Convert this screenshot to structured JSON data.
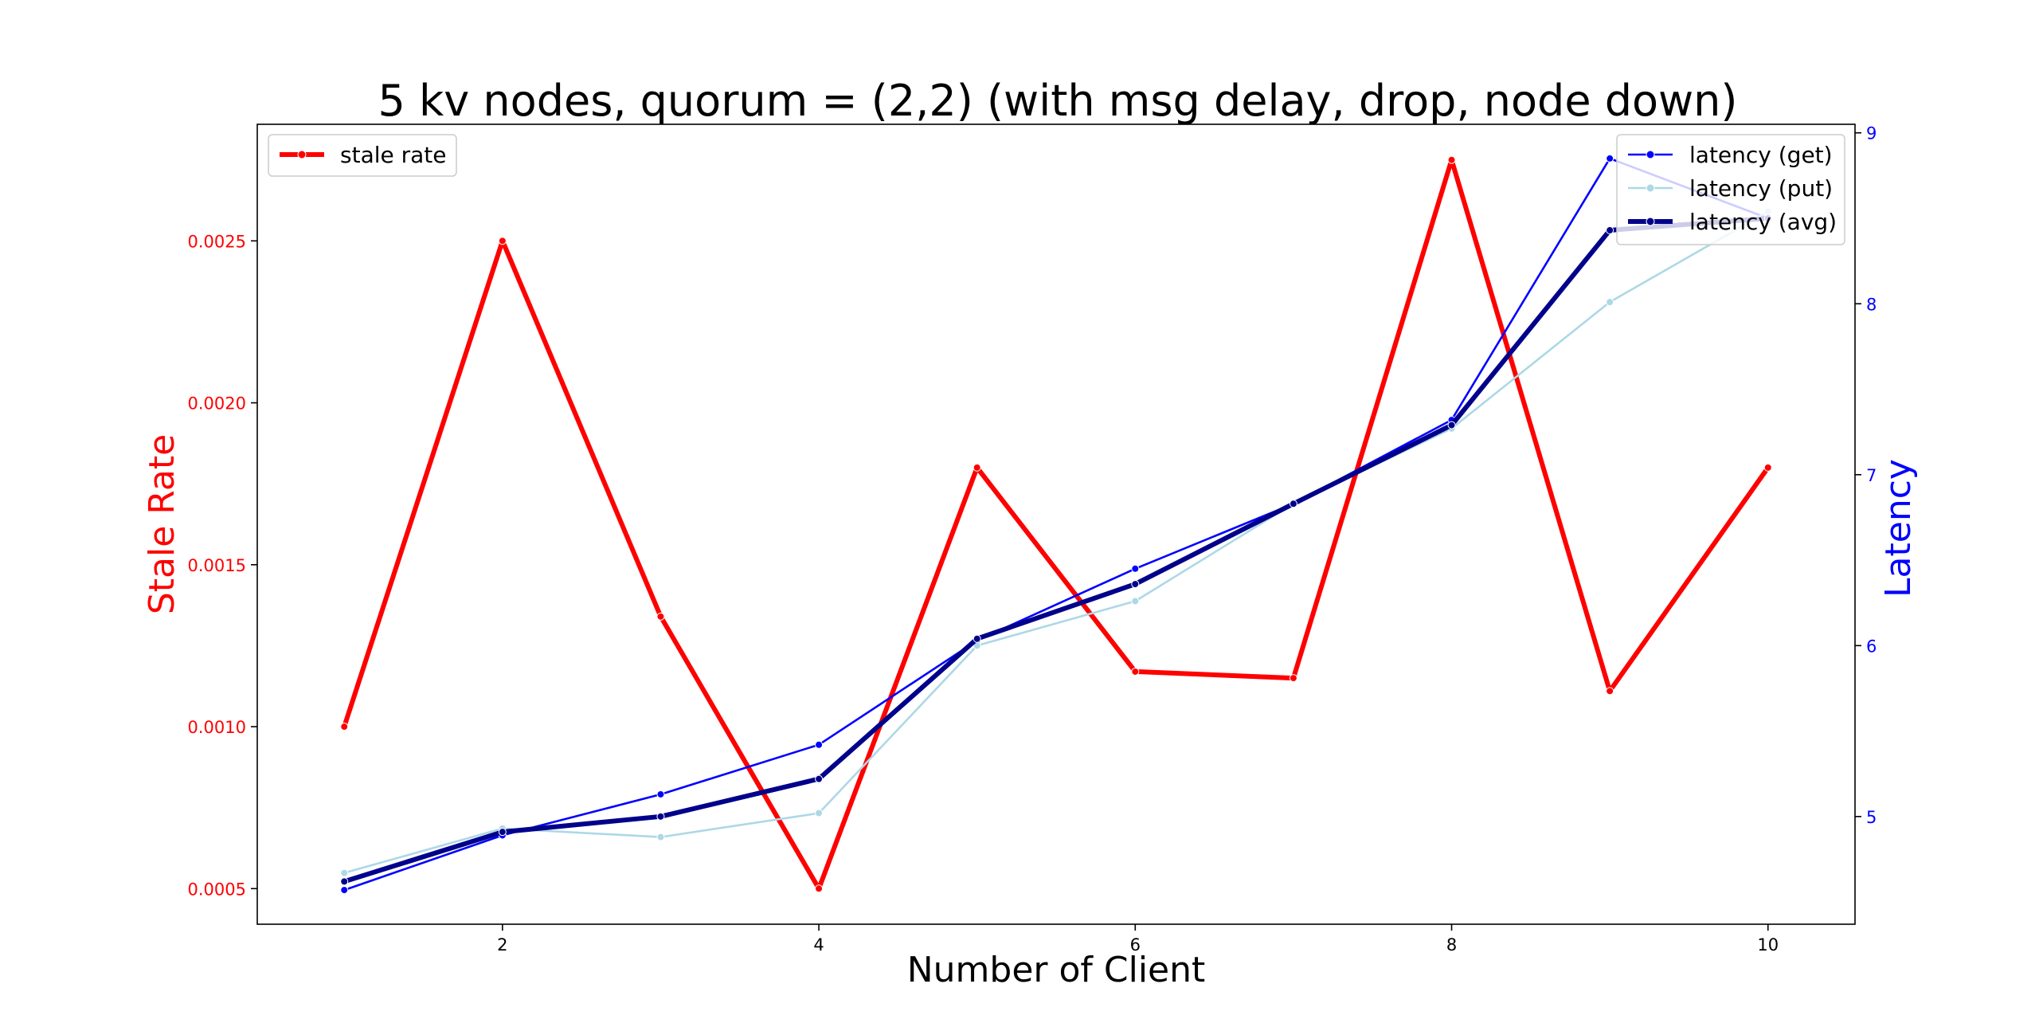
{
  "chart_data": {
    "type": "line",
    "title": "5 kv nodes, quorum = (2,2) (with msg delay, drop, node down)",
    "xlabel": "Number of Client",
    "ylabel_left": "Stale Rate",
    "ylabel_right": "Latency",
    "x": [
      1,
      2,
      3,
      4,
      5,
      6,
      7,
      8,
      9,
      10
    ],
    "xlim": [
      0.45,
      10.55
    ],
    "x_ticks": [
      2,
      4,
      6,
      8,
      10
    ],
    "ylim_left": [
      0.00039,
      0.00286
    ],
    "y_ticks_left": [
      "0.0005",
      "0.0010",
      "0.0015",
      "0.0020",
      "0.0025"
    ],
    "ylim_right": [
      4.37,
      9.05
    ],
    "y_ticks_right": [
      5,
      6,
      7,
      8,
      9
    ],
    "left_axis_color": "#ff0000",
    "right_axis_color": "#0000ff",
    "grid": false,
    "series": [
      {
        "name": "stale rate",
        "axis": "left",
        "color": "#ff0000",
        "width": 6,
        "values": [
          0.001,
          0.0025,
          0.00134,
          0.0005,
          0.0018,
          0.00117,
          0.00115,
          0.00275,
          0.00111,
          0.0018
        ]
      },
      {
        "name": "latency (get)",
        "axis": "right",
        "color": "#0000ff",
        "width": 2.6,
        "values": [
          4.57,
          4.89,
          5.13,
          5.42,
          6.03,
          6.45,
          6.83,
          7.32,
          8.85,
          8.5
        ]
      },
      {
        "name": "latency (put)",
        "axis": "right",
        "color": "#add8e6",
        "width": 2.6,
        "values": [
          4.67,
          4.93,
          4.88,
          5.02,
          6.0,
          6.26,
          6.83,
          7.27,
          8.01,
          8.54
        ]
      },
      {
        "name": "latency (avg)",
        "axis": "right",
        "color": "#00008b",
        "width": 6,
        "values": [
          4.62,
          4.91,
          5.0,
          5.22,
          6.04,
          6.36,
          6.83,
          7.29,
          8.43,
          8.5
        ]
      }
    ],
    "legend_left": {
      "placement": "top-left",
      "entries": [
        "stale rate"
      ]
    },
    "legend_right": {
      "placement": "top-right",
      "entries": [
        "latency (get)",
        "latency (put)",
        "latency (avg)"
      ]
    }
  }
}
